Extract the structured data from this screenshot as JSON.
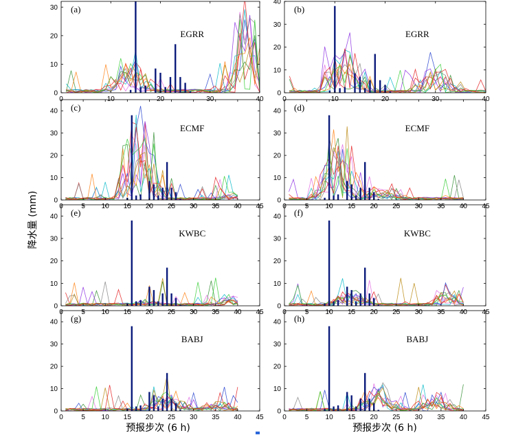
{
  "y_axis_label": "降水量 (mm)",
  "x_axis_label": "预报步次 (6 h)",
  "obs": {
    "color": "#0a1a7a",
    "x": [
      15,
      16,
      17,
      18,
      20,
      21,
      22,
      23,
      24,
      25,
      26,
      27
    ],
    "y": [
      1,
      38,
      2,
      2.5,
      8.5,
      7,
      2,
      5.5,
      17,
      5.5,
      3.5,
      0.5
    ]
  },
  "ensemble_colors": [
    "#e41a1c",
    "#1f3ccc",
    "#2e8b2e",
    "#e066e0",
    "#00b7c7",
    "#8a2be2",
    "#ff7f0e",
    "#808080",
    "#b8860b",
    "#32cd32"
  ],
  "chart_data": [
    {
      "id": "a",
      "type": "line",
      "panel_label": "(a)",
      "center": "EGRR",
      "xlim": [
        0,
        40
      ],
      "ylim": [
        0,
        32
      ],
      "xticks": [
        0,
        10,
        20,
        30,
        40
      ],
      "yticks": [
        0,
        10,
        20,
        30
      ],
      "obs_shift": -1,
      "peak": [
        14,
        24,
        0.5
      ],
      "tail": [
        37,
        30,
        1.0
      ]
    },
    {
      "id": "b",
      "type": "line",
      "panel_label": "(b)",
      "center": "EGRR",
      "xlim": [
        0,
        40
      ],
      "ylim": [
        0,
        40
      ],
      "xticks": [
        0,
        10,
        20,
        30,
        40
      ],
      "yticks": [
        0,
        10,
        20,
        30,
        40
      ],
      "obs_shift": -6,
      "peak": [
        12,
        28,
        0.8
      ],
      "tail": [
        30,
        18,
        0.6
      ]
    },
    {
      "id": "c",
      "type": "line",
      "panel_label": "(c)",
      "center": "ECMF",
      "xlim": [
        0,
        45
      ],
      "ylim": [
        0,
        45
      ],
      "xticks": [
        0,
        5,
        10,
        15,
        20,
        25,
        30,
        35,
        40,
        45
      ],
      "yticks": [
        0,
        10,
        20,
        30,
        40
      ],
      "obs_shift": 0,
      "peak": [
        18,
        40,
        1.0
      ],
      "tail": [
        40,
        8,
        0.3
      ]
    },
    {
      "id": "d",
      "type": "line",
      "panel_label": "(d)",
      "center": "ECMF",
      "xlim": [
        0,
        45
      ],
      "ylim": [
        0,
        45
      ],
      "xticks": [
        0,
        5,
        10,
        15,
        20,
        25,
        30,
        35,
        40,
        45
      ],
      "yticks": [
        0,
        10,
        20,
        30,
        40
      ],
      "obs_shift": -6,
      "peak": [
        12,
        30,
        1.0
      ],
      "tail": [
        22,
        15,
        0.4
      ]
    },
    {
      "id": "e",
      "type": "line",
      "panel_label": "(e)",
      "center": "KWBC",
      "xlim": [
        0,
        45
      ],
      "ylim": [
        0,
        45
      ],
      "xticks": [
        0,
        5,
        10,
        15,
        20,
        25,
        30,
        35,
        40,
        45
      ],
      "yticks": [
        0,
        10,
        20,
        30,
        40
      ],
      "obs_shift": 0,
      "peak": [
        20,
        3,
        0.4
      ],
      "tail": [
        38,
        8,
        0.5
      ]
    },
    {
      "id": "f",
      "type": "line",
      "panel_label": "(f)",
      "center": "KWBC",
      "xlim": [
        0,
        45
      ],
      "ylim": [
        0,
        45
      ],
      "xticks": [
        0,
        5,
        10,
        15,
        20,
        25,
        30,
        35,
        40,
        45
      ],
      "yticks": [
        0,
        10,
        20,
        30,
        40
      ],
      "obs_shift": -6,
      "peak": [
        15,
        10,
        0.6
      ],
      "tail": [
        37,
        9,
        0.6
      ]
    },
    {
      "id": "g",
      "type": "line",
      "panel_label": "(g)",
      "center": "BABJ",
      "xlim": [
        0,
        45
      ],
      "ylim": [
        0,
        45
      ],
      "xticks": [
        0,
        5,
        10,
        15,
        20,
        25,
        30,
        35,
        40,
        45
      ],
      "yticks": [
        0,
        10,
        20,
        30,
        40
      ],
      "obs_shift": 0,
      "peak": [
        24,
        18,
        0.5
      ],
      "tail": [
        35,
        7,
        0.5
      ]
    },
    {
      "id": "h",
      "type": "line",
      "panel_label": "(h)",
      "center": "BABJ",
      "xlim": [
        0,
        45
      ],
      "ylim": [
        0,
        45
      ],
      "xticks": [
        0,
        5,
        10,
        15,
        20,
        25,
        30,
        35,
        40,
        45
      ],
      "yticks": [
        0,
        10,
        20,
        30,
        40
      ],
      "obs_shift": -6,
      "peak": [
        21,
        22,
        0.5
      ],
      "tail": [
        34,
        13,
        0.6
      ]
    }
  ]
}
